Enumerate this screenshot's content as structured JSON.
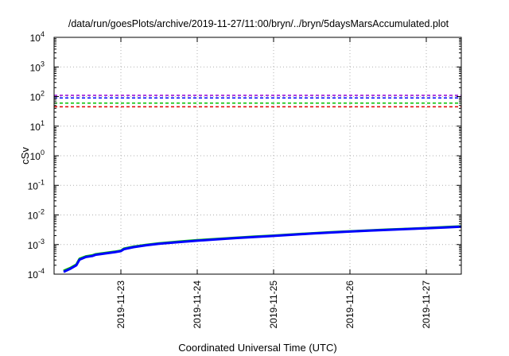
{
  "chart_data": {
    "type": "line",
    "title": "/data/run/goesPlots/archive/2019-11-27/11:00/bryn/../bryn/5daysMarsAccumulated.plot",
    "xlabel": "Coordinated Universal Time (UTC)",
    "ylabel": "cSv",
    "y_scale": "log",
    "ylim": [
      0.0001,
      10000
    ],
    "xlim": [
      "2019-11-22T03:00",
      "2019-11-27T11:00"
    ],
    "y_ticks": [
      {
        "base": "10",
        "exp": "-4"
      },
      {
        "base": "10",
        "exp": "-3"
      },
      {
        "base": "10",
        "exp": "-2"
      },
      {
        "base": "10",
        "exp": "-1"
      },
      {
        "base": "10",
        "exp": "0"
      },
      {
        "base": "10",
        "exp": "1"
      },
      {
        "base": "10",
        "exp": "2"
      },
      {
        "base": "10",
        "exp": "3"
      },
      {
        "base": "10",
        "exp": "4"
      }
    ],
    "x_ticks": [
      "2019-11-23",
      "2019-11-24",
      "2019-11-25",
      "2019-11-26",
      "2019-11-27"
    ],
    "grid": true,
    "reference_lines": [
      {
        "y": 110,
        "color": "#9400d3"
      },
      {
        "y": 90,
        "color": "#0000ff"
      },
      {
        "y": 60,
        "color": "#00c000"
      },
      {
        "y": 45,
        "color": "#e00000"
      }
    ],
    "series": [
      {
        "color": "#00c000",
        "x": [
          "2019-11-22T06:00",
          "2019-11-22T08:00",
          "2019-11-22T10:00",
          "2019-11-22T11:00",
          "2019-11-22T13:00",
          "2019-11-22T15:00",
          "2019-11-22T16:00",
          "2019-11-22T19:00",
          "2019-11-22T22:00",
          "2019-11-23T00:00",
          "2019-11-23T01:00",
          "2019-11-23T04:00",
          "2019-11-23T08:00",
          "2019-11-23T12:00",
          "2019-11-23T18:00",
          "2019-11-24T00:00",
          "2019-11-24T06:00",
          "2019-11-24T12:00",
          "2019-11-24T18:00",
          "2019-11-25T00:00",
          "2019-11-25T06:00",
          "2019-11-25T12:00",
          "2019-11-25T18:00",
          "2019-11-26T00:00",
          "2019-11-26T06:00",
          "2019-11-26T12:00",
          "2019-11-26T18:00",
          "2019-11-27T00:00",
          "2019-11-27T06:00",
          "2019-11-27T11:00"
        ],
        "values": [
          0.00013,
          0.00016,
          0.00021,
          0.00033,
          0.0004,
          0.00043,
          0.00047,
          0.00052,
          0.00057,
          0.00062,
          0.00073,
          0.00085,
          0.00098,
          0.0011,
          0.00125,
          0.0014,
          0.00155,
          0.0017,
          0.00185,
          0.002,
          0.0022,
          0.0024,
          0.0026,
          0.0028,
          0.003,
          0.0032,
          0.0034,
          0.0036,
          0.0039,
          0.0041
        ]
      },
      {
        "color": "#0000ff",
        "x": [
          "2019-11-22T06:00",
          "2019-11-22T08:00",
          "2019-11-22T10:00",
          "2019-11-22T11:00",
          "2019-11-22T13:00",
          "2019-11-22T15:00",
          "2019-11-22T16:00",
          "2019-11-22T19:00",
          "2019-11-22T22:00",
          "2019-11-23T00:00",
          "2019-11-23T01:00",
          "2019-11-23T04:00",
          "2019-11-23T08:00",
          "2019-11-23T12:00",
          "2019-11-23T18:00",
          "2019-11-24T00:00",
          "2019-11-24T06:00",
          "2019-11-24T12:00",
          "2019-11-24T18:00",
          "2019-11-25T00:00",
          "2019-11-25T06:00",
          "2019-11-25T12:00",
          "2019-11-25T18:00",
          "2019-11-26T00:00",
          "2019-11-26T06:00",
          "2019-11-26T12:00",
          "2019-11-26T18:00",
          "2019-11-27T00:00",
          "2019-11-27T06:00",
          "2019-11-27T11:00"
        ],
        "values": [
          0.00012,
          0.00015,
          0.0002,
          0.00031,
          0.00038,
          0.00041,
          0.00045,
          0.0005,
          0.00055,
          0.0006,
          0.0007,
          0.00082,
          0.00095,
          0.00107,
          0.0012,
          0.00135,
          0.0015,
          0.00165,
          0.0018,
          0.00195,
          0.00215,
          0.00235,
          0.00255,
          0.00275,
          0.00295,
          0.00315,
          0.00335,
          0.00355,
          0.0038,
          0.004
        ]
      }
    ]
  }
}
